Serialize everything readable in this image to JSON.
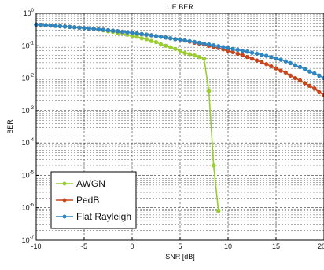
{
  "chart_data": {
    "type": "line",
    "title": "UE BER",
    "xlabel": "SNR [dB]",
    "ylabel": "BER",
    "xlim": [
      -10,
      20
    ],
    "ylim": [
      1e-07,
      1
    ],
    "yscale": "log",
    "grid": true,
    "legend_position": "bottom-left",
    "x_ticks": [
      {
        "value": -10,
        "label": "-10"
      },
      {
        "value": -5,
        "label": "-5"
      },
      {
        "value": 0,
        "label": "0"
      },
      {
        "value": 5,
        "label": "5"
      },
      {
        "value": 10,
        "label": "10"
      },
      {
        "value": 15,
        "label": "15"
      },
      {
        "value": 20,
        "label": "20"
      }
    ],
    "y_ticks": [
      {
        "value": 1e-07,
        "base": "10",
        "exp": "-7"
      },
      {
        "value": 1e-06,
        "base": "10",
        "exp": "-6"
      },
      {
        "value": 1e-05,
        "base": "10",
        "exp": "-5"
      },
      {
        "value": 0.0001,
        "base": "10",
        "exp": "-4"
      },
      {
        "value": 0.001,
        "base": "10",
        "exp": "-3"
      },
      {
        "value": 0.01,
        "base": "10",
        "exp": "-2"
      },
      {
        "value": 0.1,
        "base": "10",
        "exp": "-1"
      },
      {
        "value": 1,
        "base": "10",
        "exp": "0"
      }
    ],
    "series": [
      {
        "name": "AWGN",
        "color": "#9ACD32",
        "x": [
          -10,
          -9.5,
          -9,
          -8.5,
          -8,
          -7.5,
          -7,
          -6.5,
          -6,
          -5.5,
          -5,
          -4.5,
          -4,
          -3.5,
          -3,
          -2.5,
          -2,
          -1.5,
          -1,
          -0.5,
          0,
          0.5,
          1,
          1.5,
          2,
          2.5,
          3,
          3.5,
          4,
          4.5,
          5,
          5.5,
          6,
          6.5,
          7,
          7.5,
          8,
          8.5,
          9
        ],
        "y": [
          0.45,
          0.44,
          0.43,
          0.42,
          0.41,
          0.4,
          0.39,
          0.38,
          0.37,
          0.36,
          0.35,
          0.34,
          0.33,
          0.31,
          0.3,
          0.28,
          0.27,
          0.25,
          0.24,
          0.22,
          0.2,
          0.19,
          0.17,
          0.16,
          0.14,
          0.13,
          0.11,
          0.1,
          0.09,
          0.08,
          0.07,
          0.06,
          0.055,
          0.05,
          0.045,
          0.04,
          0.004,
          2e-05,
          8e-07
        ]
      },
      {
        "name": "PedB",
        "color": "#C8461E",
        "x": [
          -10,
          -9.5,
          -9,
          -8.5,
          -8,
          -7.5,
          -7,
          -6.5,
          -6,
          -5.5,
          -5,
          -4.5,
          -4,
          -3.5,
          -3,
          -2.5,
          -2,
          -1.5,
          -1,
          -0.5,
          0,
          0.5,
          1,
          1.5,
          2,
          2.5,
          3,
          3.5,
          4,
          4.5,
          5,
          5.5,
          6,
          6.5,
          7,
          7.5,
          8,
          8.5,
          9,
          9.5,
          10,
          10.5,
          11,
          11.5,
          12,
          12.5,
          13,
          13.5,
          14,
          14.5,
          15,
          15.5,
          16,
          16.5,
          17,
          17.5,
          18,
          18.5,
          19,
          19.5,
          20
        ],
        "y": [
          0.45,
          0.44,
          0.43,
          0.42,
          0.41,
          0.4,
          0.39,
          0.38,
          0.37,
          0.36,
          0.35,
          0.34,
          0.33,
          0.32,
          0.31,
          0.3,
          0.29,
          0.28,
          0.27,
          0.26,
          0.25,
          0.24,
          0.23,
          0.22,
          0.21,
          0.2,
          0.19,
          0.18,
          0.17,
          0.16,
          0.155,
          0.145,
          0.135,
          0.125,
          0.118,
          0.11,
          0.1,
          0.092,
          0.085,
          0.078,
          0.071,
          0.064,
          0.057,
          0.051,
          0.045,
          0.04,
          0.035,
          0.031,
          0.027,
          0.023,
          0.02,
          0.017,
          0.015,
          0.012,
          0.01,
          0.0085,
          0.007,
          0.0058,
          0.0048,
          0.0037,
          0.003
        ]
      },
      {
        "name": "Flat Rayleigh",
        "color": "#2E86C1",
        "x": [
          -10,
          -9.5,
          -9,
          -8.5,
          -8,
          -7.5,
          -7,
          -6.5,
          -6,
          -5.5,
          -5,
          -4.5,
          -4,
          -3.5,
          -3,
          -2.5,
          -2,
          -1.5,
          -1,
          -0.5,
          0,
          0.5,
          1,
          1.5,
          2,
          2.5,
          3,
          3.5,
          4,
          4.5,
          5,
          5.5,
          6,
          6.5,
          7,
          7.5,
          8,
          8.5,
          9,
          9.5,
          10,
          10.5,
          11,
          11.5,
          12,
          12.5,
          13,
          13.5,
          14,
          14.5,
          15,
          15.5,
          16,
          16.5,
          17,
          17.5,
          18,
          18.5,
          19,
          19.5,
          20
        ],
        "y": [
          0.45,
          0.44,
          0.43,
          0.42,
          0.41,
          0.4,
          0.39,
          0.38,
          0.37,
          0.36,
          0.35,
          0.34,
          0.33,
          0.32,
          0.31,
          0.3,
          0.29,
          0.28,
          0.27,
          0.26,
          0.25,
          0.24,
          0.23,
          0.22,
          0.21,
          0.2,
          0.19,
          0.18,
          0.17,
          0.16,
          0.155,
          0.147,
          0.139,
          0.131,
          0.124,
          0.117,
          0.11,
          0.103,
          0.097,
          0.091,
          0.085,
          0.08,
          0.075,
          0.07,
          0.066,
          0.061,
          0.057,
          0.053,
          0.049,
          0.045,
          0.041,
          0.037,
          0.033,
          0.029,
          0.025,
          0.022,
          0.019,
          0.016,
          0.014,
          0.012,
          0.01
        ]
      }
    ]
  }
}
